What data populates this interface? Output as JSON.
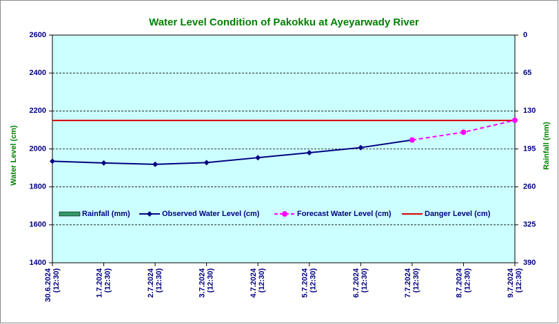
{
  "chart_data": {
    "type": "line",
    "title": "Water Level Condition of Pakokku at Ayeyarwady River",
    "y_label": "Water Level (cm)",
    "y2_label": "Rainfall (mm)",
    "categories": [
      [
        "30.6.2024",
        "(12:30)"
      ],
      [
        "1.7.2024",
        "(12:30)"
      ],
      [
        "2.7.2024",
        "(12:30)"
      ],
      [
        "3.7.2024",
        "(12:30)"
      ],
      [
        "4.7.2024",
        "(12:30)"
      ],
      [
        "5.7.2024",
        "(12:30)"
      ],
      [
        "6.7.2024",
        "(12:30)"
      ],
      [
        "7.7.2024",
        "(12:30)"
      ],
      [
        "8.7.2024",
        "(12:30)"
      ],
      [
        "9.7.2024",
        "(12:30)"
      ]
    ],
    "ylim": [
      1400,
      2600
    ],
    "yticks": [
      1400,
      1600,
      1800,
      2000,
      2200,
      2400,
      2600
    ],
    "y2lim": [
      390,
      0
    ],
    "y2ticks": [
      390,
      325,
      260,
      195,
      130,
      65,
      0
    ],
    "grid": true,
    "series": [
      {
        "name": "Rainfall (mm)",
        "kind": "bar",
        "axis": "y2",
        "color": "#339966",
        "values": [
          null,
          null,
          null,
          null,
          null,
          null,
          null,
          null,
          null,
          null
        ]
      },
      {
        "name": "Observed Water Level (cm)",
        "kind": "line",
        "color": "#000080",
        "marker": "diamond",
        "dashed": false,
        "values": [
          1935,
          1926,
          1919,
          1928,
          1954,
          1980,
          2007,
          2047,
          null,
          null
        ]
      },
      {
        "name": "Forecast Water Level (cm)",
        "kind": "line",
        "color": "#ff00ff",
        "marker": "circle",
        "dashed": true,
        "values": [
          null,
          null,
          null,
          null,
          null,
          null,
          null,
          2047,
          2088,
          2151
        ]
      }
    ],
    "danger_level": {
      "name": "Danger Level (cm)",
      "color": "#dd0000",
      "value": 2150
    }
  }
}
